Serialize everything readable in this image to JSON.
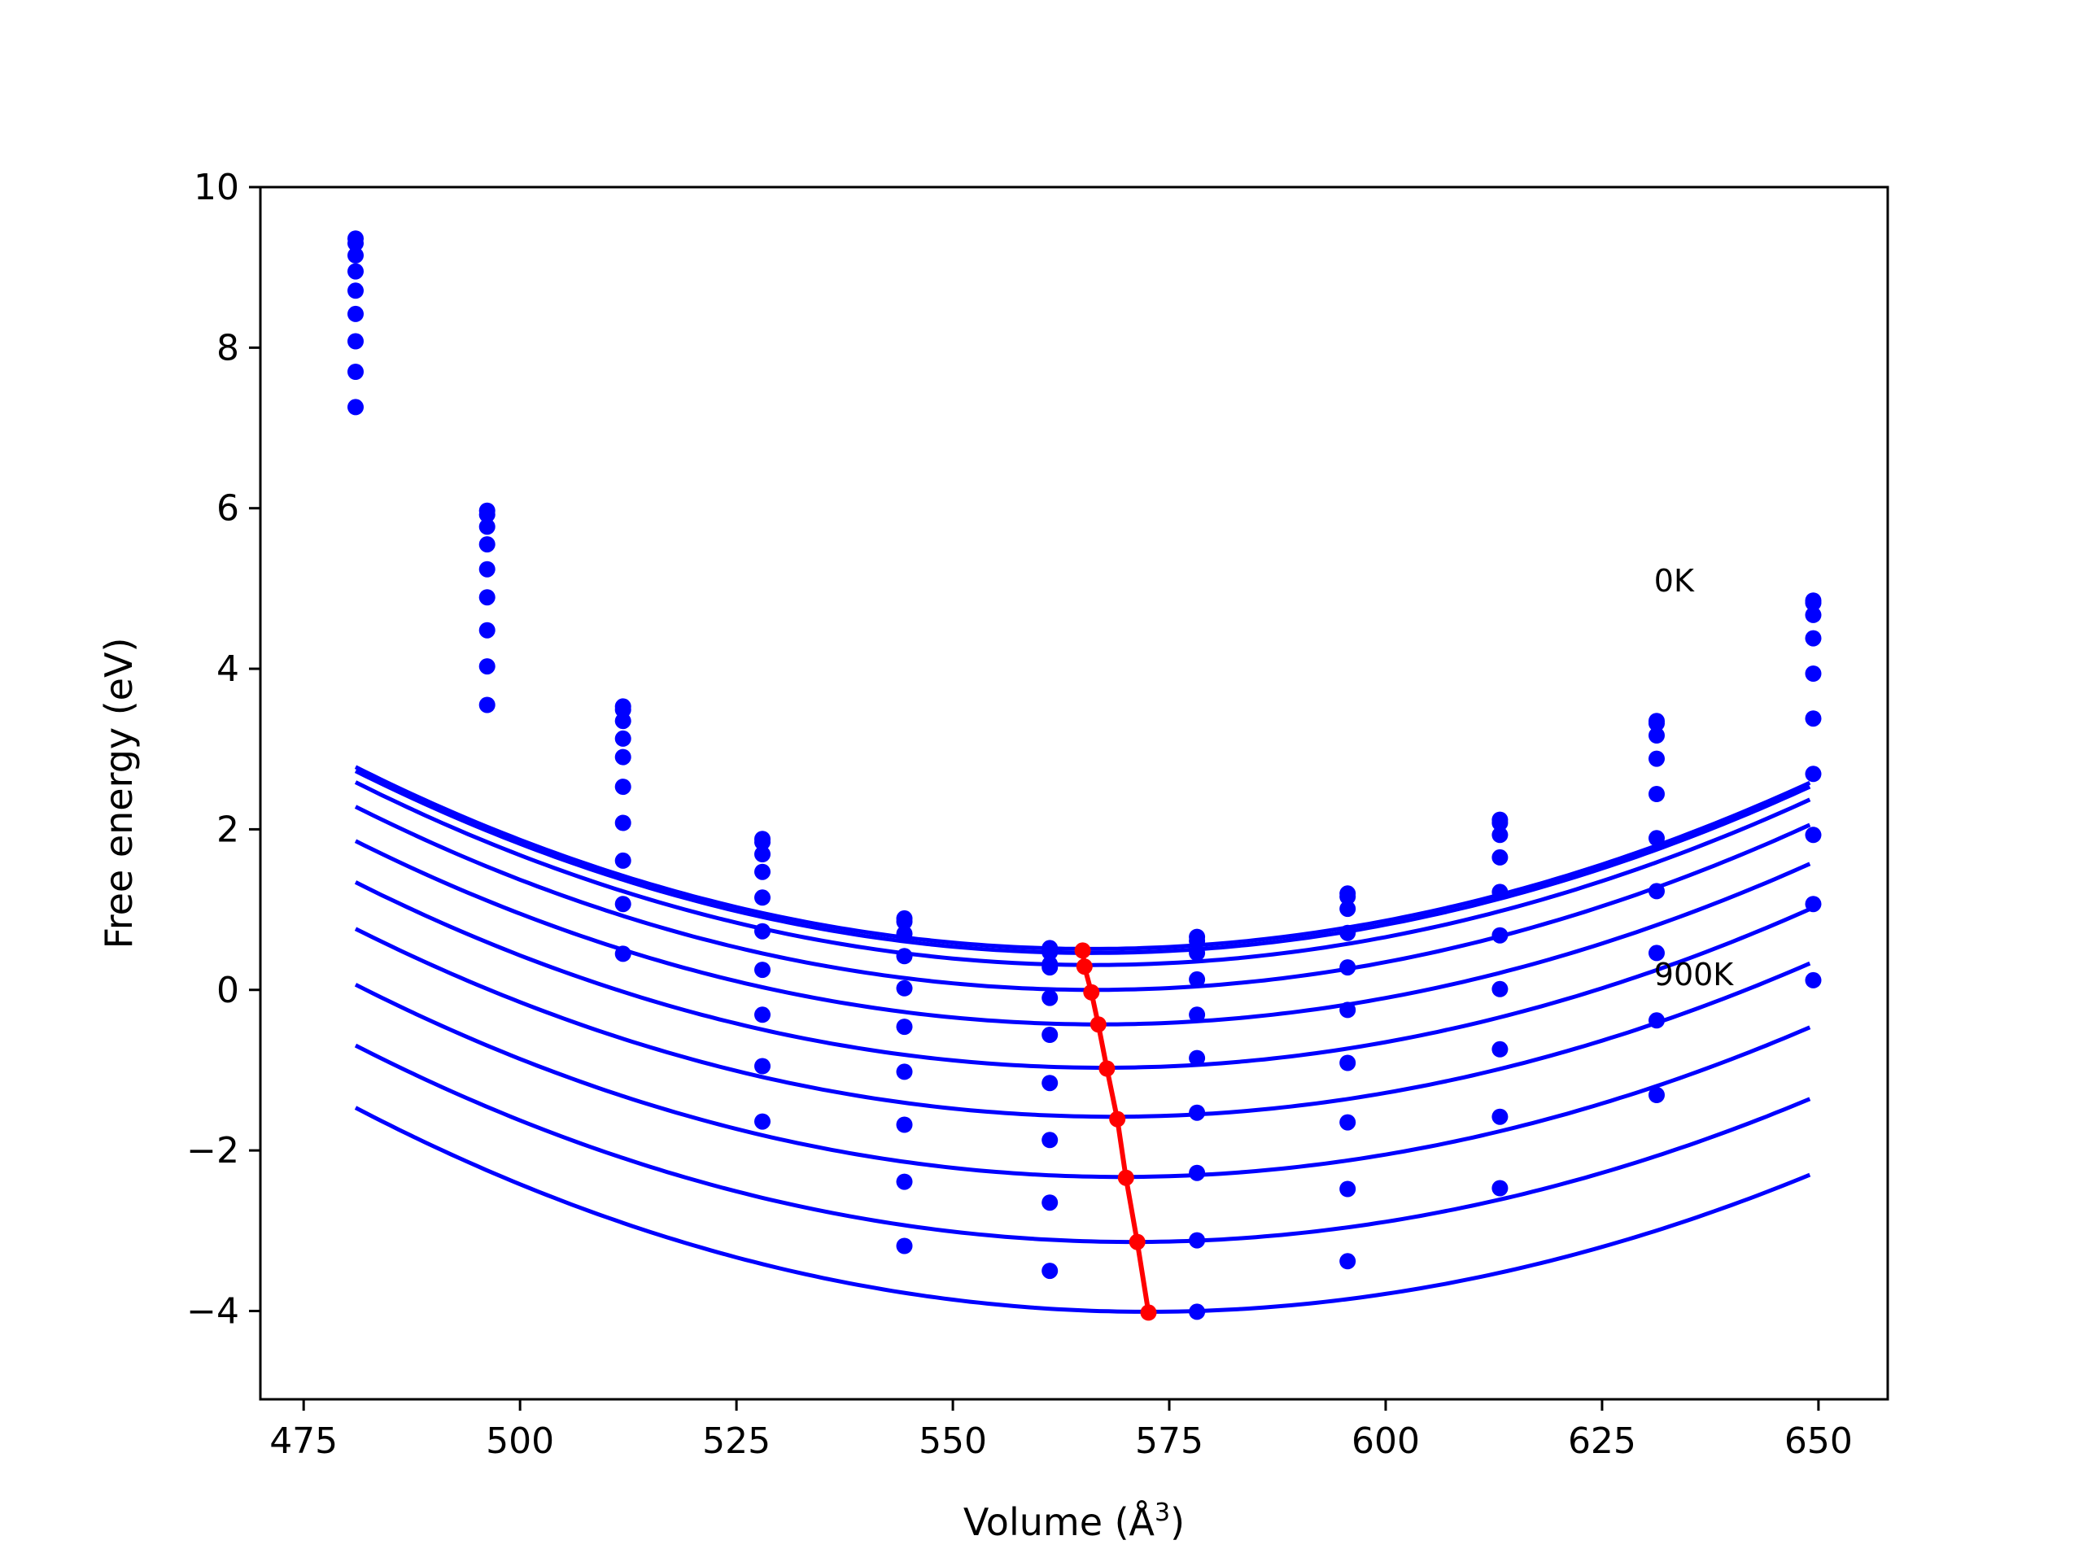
{
  "chart_data": {
    "type": "line",
    "title": "",
    "xlabel": "Volume (Å",
    "xlabel_sup": "3",
    "xlabel_close": ")",
    "ylabel": "Free energy (eV)",
    "xlim": [
      470,
      658
    ],
    "ylim": [
      -5.1,
      10.0
    ],
    "xticks": [
      475,
      500,
      525,
      550,
      575,
      600,
      625,
      650
    ],
    "yticks": [
      -4,
      -2,
      0,
      2,
      4,
      6,
      8,
      10
    ],
    "grid": false,
    "legend": "none",
    "colors": {
      "fit_curves": "#0000ff",
      "data_points": "#0000ff",
      "minimum_path": "#ff0000"
    },
    "annotations": [
      {
        "text": "0K",
        "x": 631,
        "y": 4.9
      },
      {
        "text": "900K",
        "x": 631,
        "y": 0.0
      }
    ],
    "volumes": [
      481.0,
      496.2,
      511.9,
      528.0,
      544.4,
      561.2,
      578.2,
      595.6,
      613.2,
      631.3,
      649.4
    ],
    "series": [
      {
        "values": [
          9.36,
          5.97,
          3.53,
          1.88,
          0.89,
          0.52,
          0.66,
          1.2,
          2.12,
          3.35,
          4.85
        ],
        "fit": {
          "vmin": 566.0,
          "emin": 0.51,
          "a": 0.000307,
          "b": -7.8e-08
        }
      },
      {
        "values": [
          9.3,
          5.92,
          3.49,
          1.84,
          0.85,
          0.47,
          0.61,
          1.16,
          2.08,
          3.32,
          4.82
        ],
        "fit": {
          "vmin": 566.0,
          "emin": 0.46,
          "a": 0.000307,
          "b": -7.8e-08
        }
      },
      {
        "values": [
          9.15,
          5.77,
          3.35,
          1.69,
          0.7,
          0.32,
          0.46,
          1.01,
          1.93,
          3.17,
          4.67
        ],
        "fit": {
          "vmin": 566.2,
          "emin": 0.31,
          "a": 0.000307,
          "b": -7.8e-08
        }
      },
      {
        "values": [
          8.95,
          5.55,
          3.13,
          1.47,
          0.42,
          0.28,
          0.13,
          0.71,
          1.65,
          2.88,
          4.38
        ],
        "fit": {
          "vmin": 566.3,
          "emin": 0.0,
          "a": 0.000307,
          "b": -7.8e-08
        }
      },
      {
        "values": [
          8.71,
          5.24,
          2.9,
          1.15,
          0.02,
          -0.1,
          -0.31,
          0.28,
          1.22,
          2.44,
          3.94
        ],
        "fit": {
          "vmin": 566.9,
          "emin": -0.43,
          "a": 0.000303,
          "b": -7.6e-08
        }
      },
      {
        "values": [
          8.42,
          4.89,
          2.53,
          0.73,
          -0.46,
          -0.56,
          -0.85,
          -0.25,
          0.68,
          1.89,
          3.38
        ],
        "fit": {
          "vmin": 567.4,
          "emin": -0.97,
          "a": 0.000303,
          "b": -7.6e-08
        }
      },
      {
        "values": [
          8.08,
          4.48,
          2.08,
          0.25,
          -1.02,
          -1.16,
          -1.53,
          -0.91,
          0.01,
          1.23,
          2.69
        ],
        "fit": {
          "vmin": 568.4,
          "emin": -1.58,
          "a": 0.0003,
          "b": -7.4e-08
        }
      },
      {
        "values": [
          7.7,
          4.03,
          1.61,
          -0.31,
          -1.68,
          -1.87,
          -2.28,
          -1.65,
          -0.74,
          0.46,
          1.93
        ],
        "fit": {
          "vmin": 569.4,
          "emin": -2.33,
          "a": 0.0003,
          "b": -7.4e-08
        }
      },
      {
        "values": [
          7.26,
          3.55,
          1.07,
          -0.95,
          -2.39,
          -2.65,
          -3.12,
          -2.48,
          -1.58,
          -0.38,
          1.07
        ],
        "fit": {
          "vmin": 570.8,
          "emin": -3.14,
          "a": 0.000297,
          "b": -7.2e-08
        }
      },
      {
        "values": [
          null,
          null,
          0.45,
          -1.64,
          -3.19,
          -3.5,
          -4.01,
          -3.38,
          -2.47,
          -1.31,
          0.12
        ],
        "fit": {
          "vmin": 572.5,
          "emin": -4.01,
          "a": 0.000297,
          "b": -7.2e-08
        }
      }
    ],
    "minimum_path": {
      "x": [
        565.0,
        565.2,
        566.0,
        566.8,
        567.8,
        569.0,
        570.0,
        571.3,
        572.6
      ],
      "y": [
        0.49,
        0.29,
        -0.03,
        -0.43,
        -0.98,
        -1.61,
        -2.34,
        -3.14,
        -4.02
      ]
    }
  }
}
